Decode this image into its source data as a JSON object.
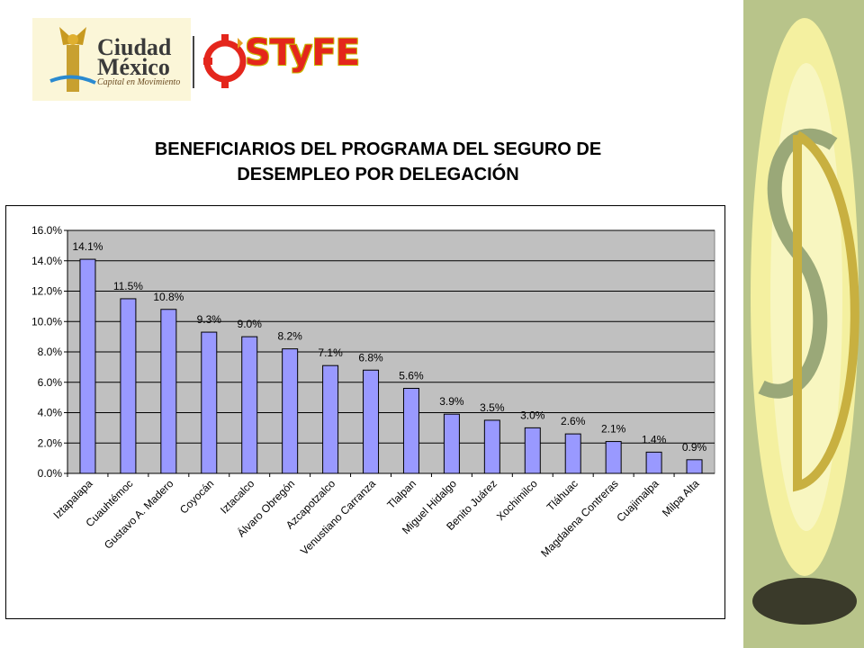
{
  "logos": {
    "ciudad_text": "Ciudad México",
    "ciudad_tagline": "Capital en Movimiento",
    "styfe_text": "STyFE"
  },
  "colors": {
    "bar_fill": "#9999ff",
    "plot_bg": "#c0c0c0",
    "band_green": "#b8c48a",
    "band_yellow": "#f2ee98"
  },
  "chart_data": {
    "type": "bar",
    "title": "BENEFICIARIOS DEL PROGRAMA DEL SEGURO DE DESEMPLEO POR DELEGACIÓN",
    "title_lines": [
      "BENEFICIARIOS DEL PROGRAMA DEL SEGURO DE",
      "DESEMPLEO POR DELEGACIÓN"
    ],
    "categories": [
      "Iztapalapa",
      "Cuauhtémoc",
      "Gustavo A. Madero",
      "Coyocán",
      "Iztacalco",
      "Álvaro Obregón",
      "Azcapotzalco",
      "Venustiano Carranza",
      "Tlalpan",
      "Miguel Hidalgo",
      "Benito Juárez",
      "Xochimilco",
      "Tláhuac",
      "Magdalena Contreras",
      "Cuajimalpa",
      "Milpa Alta"
    ],
    "values": [
      14.1,
      11.5,
      10.8,
      9.3,
      9.0,
      8.2,
      7.1,
      6.8,
      5.6,
      3.9,
      3.5,
      3.0,
      2.6,
      2.1,
      1.4,
      0.9
    ],
    "data_labels": [
      "14.1%",
      "11.5%",
      "10.8%",
      "9.3%",
      "9.0%",
      "8.2%",
      "7.1%",
      "6.8%",
      "5.6%",
      "3.9%",
      "3.5%",
      "3.0%",
      "2.6%",
      "2.1%",
      "1.4%",
      "0.9%"
    ],
    "yticks": [
      0,
      2,
      4,
      6,
      8,
      10,
      12,
      14,
      16
    ],
    "ytick_labels": [
      "0.0%",
      "2.0%",
      "4.0%",
      "6.0%",
      "8.0%",
      "10.0%",
      "12.0%",
      "14.0%",
      "16.0%"
    ],
    "ylim": [
      0,
      16
    ],
    "xlabel": "",
    "ylabel": "",
    "grid": true,
    "legend": "none"
  }
}
